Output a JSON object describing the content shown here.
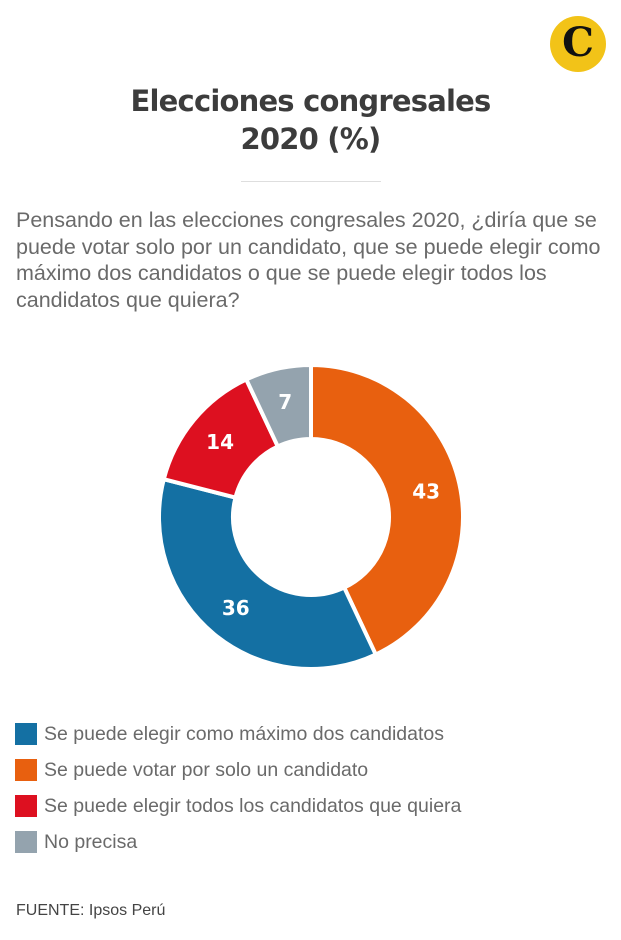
{
  "brand": {
    "logo_letter": "C",
    "logo_color": "#f2c318"
  },
  "header": {
    "title_line1": "Elecciones congresales",
    "title_line2": "2020 (%)"
  },
  "question": "Pensando en las elecciones congresales 2020, ¿diría que se puede votar solo por un candidato, que se puede elegir como máximo dos candidatos o que se puede elegir todos los candidatos que quiera?",
  "chart_data": {
    "type": "pie",
    "variant": "donut",
    "title": "Elecciones congresales 2020 (%)",
    "unit": "%",
    "start": "12 o'clock, clockwise",
    "slices": [
      {
        "label": "Se puede votar por solo un candidato",
        "value": 43,
        "color": "#e8600f"
      },
      {
        "label": "Se puede elegir como máximo dos candidatos",
        "value": 36,
        "color": "#1470a3"
      },
      {
        "label": "Se puede elegir todos los candidatos que quiera",
        "value": 14,
        "color": "#dd1020"
      },
      {
        "label": "No precisa",
        "value": 7,
        "color": "#94a3ae"
      }
    ],
    "legend": [
      {
        "label": "Se puede elegir como máximo dos candidatos",
        "color": "#1470a3"
      },
      {
        "label": "Se puede votar por solo un candidato",
        "color": "#e8600f"
      },
      {
        "label": "Se puede elegir todos los candidatos que quiera",
        "color": "#dd1020"
      },
      {
        "label": "No precisa",
        "color": "#94a3ae"
      }
    ],
    "legend_position": "bottom-left"
  },
  "source": "FUENTE: Ipsos Perú"
}
